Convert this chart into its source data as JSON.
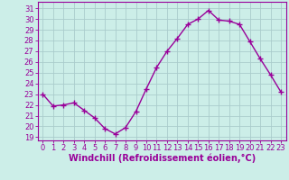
{
  "x": [
    0,
    1,
    2,
    3,
    4,
    5,
    6,
    7,
    8,
    9,
    10,
    11,
    12,
    13,
    14,
    15,
    16,
    17,
    18,
    19,
    20,
    21,
    22,
    23
  ],
  "y": [
    23.0,
    21.9,
    22.0,
    22.2,
    21.5,
    20.8,
    19.8,
    19.3,
    19.9,
    21.4,
    23.5,
    25.5,
    27.0,
    28.2,
    29.5,
    30.0,
    30.8,
    29.9,
    29.8,
    29.5,
    27.9,
    26.3,
    24.8,
    23.2
  ],
  "line_color": "#990099",
  "marker": "+",
  "marker_size": 4,
  "bg_color": "#cceee8",
  "grid_color": "#aacccc",
  "ylabel_ticks": [
    19,
    20,
    21,
    22,
    23,
    24,
    25,
    26,
    27,
    28,
    29,
    30,
    31
  ],
  "ylim": [
    18.7,
    31.6
  ],
  "xlim": [
    -0.5,
    23.5
  ],
  "xlabel": "Windchill (Refroidissement éolien,°C)",
  "xlabel_fontsize": 7,
  "tick_fontsize": 6,
  "line_width": 1.0
}
